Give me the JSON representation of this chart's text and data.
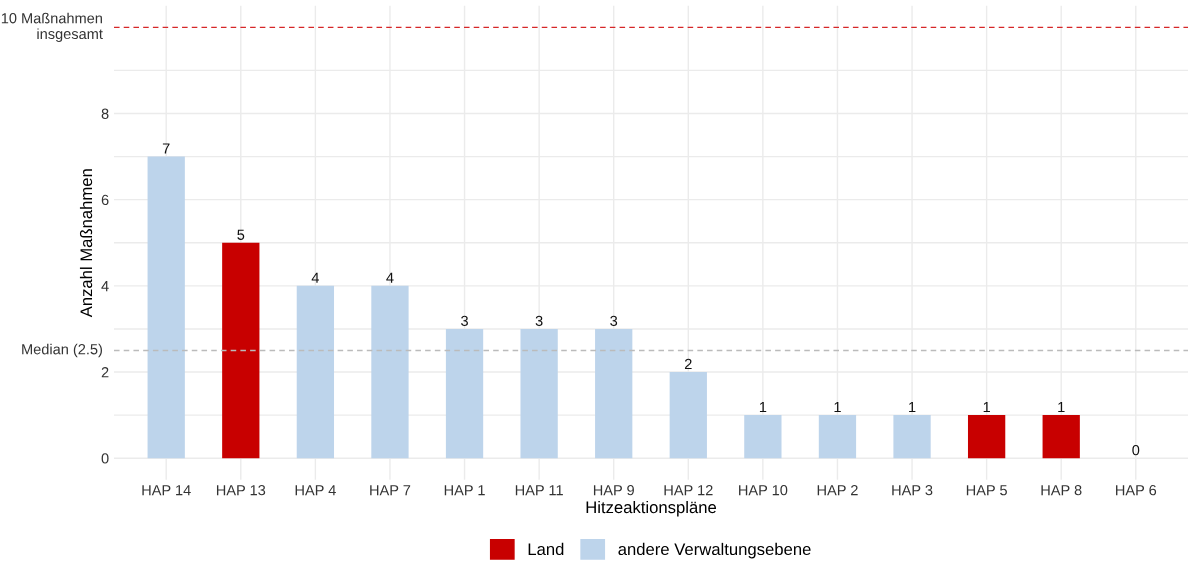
{
  "chart_data": {
    "type": "bar",
    "categories": [
      "HAP 14",
      "HAP 13",
      "HAP 4",
      "HAP 7",
      "HAP 1",
      "HAP 11",
      "HAP 9",
      "HAP 12",
      "HAP 10",
      "HAP 2",
      "HAP 3",
      "HAP 5",
      "HAP 8",
      "HAP 6"
    ],
    "series": [
      {
        "name": "Land",
        "color": "#c80000",
        "values": [
          null,
          5,
          null,
          null,
          null,
          null,
          null,
          null,
          null,
          null,
          null,
          1,
          1,
          null
        ]
      },
      {
        "name": "andere Verwaltungsebene",
        "color": "#bdd4eb",
        "values": [
          7,
          null,
          4,
          4,
          3,
          3,
          3,
          2,
          1,
          1,
          1,
          null,
          null,
          0
        ]
      }
    ],
    "xlabel": "Hitzeaktionspläne",
    "ylabel": "Anzahl Maßnahmen",
    "ylim": [
      -0.5,
      10.5
    ],
    "yticks": [
      0,
      {
        "value": 1,
        "label": null
      },
      2,
      {
        "value": 3,
        "label": null
      },
      4,
      {
        "value": 5,
        "label": null
      },
      6,
      {
        "value": 7,
        "label": null
      },
      8,
      {
        "value": 9,
        "label": null
      }
    ],
    "ref_lines": [
      {
        "axis": "y",
        "value": 10,
        "label": "10 Maßnahmen\ninsgesamt",
        "color": "#d62728",
        "line_style": "dashed"
      },
      {
        "axis": "y",
        "value": 2.5,
        "label": "Median (2.5)",
        "color": "#bbbbbb",
        "line_style": "dashed"
      }
    ],
    "data_labels": true,
    "grid": true,
    "legend": "bottom"
  }
}
